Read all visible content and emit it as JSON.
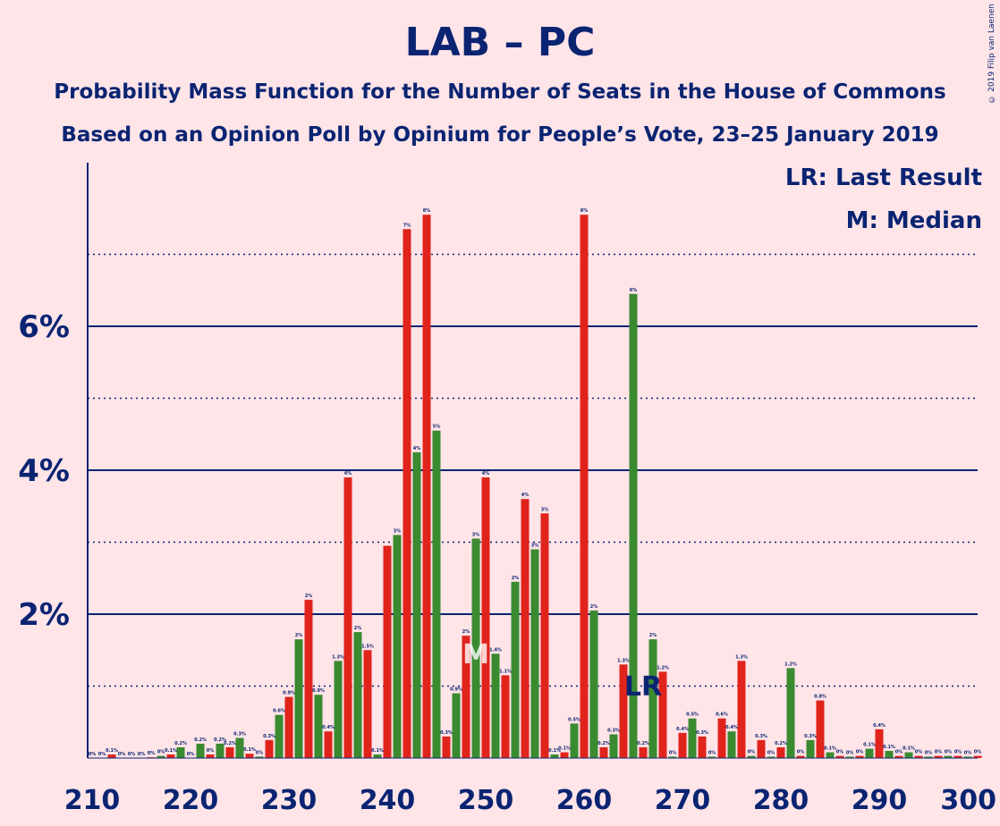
{
  "title": "LAB – PC",
  "subtitle1": "Probability Mass Function for the Number of Seats in the House of Commons",
  "subtitle2": "Based on an Opinion Poll by Opinium for People’s Vote, 23–25 January 2019",
  "copyright": "© 2019 Filip van Laenen",
  "legend": {
    "last_result": "LR: Last Result",
    "median": "M: Median"
  },
  "colors": {
    "background": "#FFE4E8",
    "red": "#E0241C",
    "green": "#3A8A30",
    "axis_text": "#0A2472"
  },
  "chart_data": {
    "type": "bar",
    "x_ticks": [
      210,
      220,
      230,
      240,
      250,
      260,
      270,
      280,
      290,
      300
    ],
    "y_ticks": [
      "2%",
      "4%",
      "6%"
    ],
    "y_tick_values": [
      2,
      4,
      6
    ],
    "ylim": [
      0,
      8.2
    ],
    "xlim": [
      210,
      300
    ],
    "median": 249,
    "median_label": "M",
    "last_result": 266,
    "last_result_label": "LR",
    "series": [
      {
        "name": "red",
        "color": "#E0241C",
        "x": [
          210,
          212,
          214,
          216,
          218,
          220,
          222,
          224,
          226,
          228,
          230,
          232,
          234,
          236,
          238,
          240,
          242,
          244,
          246,
          248,
          250,
          252,
          254,
          256,
          258,
          260,
          262,
          264,
          266,
          268,
          270,
          272,
          274,
          276,
          278,
          280,
          282,
          284,
          286,
          288,
          290,
          292,
          294,
          296,
          298,
          300
        ],
        "values": [
          0,
          0.05,
          0,
          0.01,
          0.05,
          0,
          0.05,
          0.15,
          0.06,
          0.25,
          0.85,
          2.2,
          0.37,
          3.9,
          1.5,
          2.95,
          7.35,
          7.55,
          0.3,
          1.7,
          3.9,
          1.15,
          3.6,
          3.4,
          0.08,
          7.55,
          0.15,
          1.3,
          0.15,
          1.2,
          0.35,
          0.3,
          0.55,
          1.35,
          0.25,
          0.15,
          0.03,
          0.8,
          0.03,
          0.03,
          0.4,
          0.03,
          0.03,
          0.03,
          0.03,
          0.03
        ],
        "labels": [
          "0%",
          "0.1%",
          "0%",
          "0%",
          "0.1%",
          "0%",
          "0%",
          "0.2%",
          "0.1%",
          "0.3%",
          "0.9%",
          "2%",
          "0.4%",
          "4%",
          "1.5%",
          "",
          "7%",
          "8%",
          "0.3%",
          "2%",
          "4%",
          "1.1%",
          "4%",
          "3%",
          "0.1%",
          "8%",
          "0.2%",
          "1.3%",
          "0.2%",
          "1.2%",
          "0.4%",
          "0.3%",
          "0.6%",
          "1.3%",
          "0.3%",
          "0.2%",
          "0%",
          "0.8%",
          "0%",
          "0%",
          "0.4%",
          "0%",
          "0%",
          "0%",
          "0%",
          "0%"
        ]
      },
      {
        "name": "green",
        "color": "#3A8A30",
        "x": [
          211,
          213,
          215,
          217,
          219,
          221,
          223,
          225,
          227,
          229,
          231,
          233,
          235,
          237,
          239,
          241,
          243,
          245,
          247,
          249,
          251,
          253,
          255,
          257,
          259,
          261,
          263,
          265,
          267,
          269,
          271,
          273,
          275,
          277,
          279,
          281,
          283,
          285,
          287,
          289,
          291,
          293,
          295,
          297,
          299
        ],
        "values": [
          0,
          0,
          0,
          0.03,
          0.15,
          0.2,
          0.2,
          0.28,
          0.02,
          0.6,
          1.65,
          0.88,
          1.35,
          1.75,
          0.05,
          3.1,
          4.25,
          4.55,
          0.9,
          3.05,
          1.45,
          2.45,
          2.9,
          0.05,
          0.48,
          2.05,
          0.33,
          6.45,
          1.65,
          0.02,
          0.55,
          0.02,
          0.37,
          0.03,
          0.02,
          1.25,
          0.25,
          0.08,
          0.02,
          0.13,
          0.1,
          0.08,
          0.02,
          0.03,
          0.02
        ],
        "labels": [
          "0%",
          "0%",
          "0%",
          "0%",
          "0.2%",
          "0.2%",
          "0.2%",
          "0.3%",
          "0%",
          "0.6%",
          "2%",
          "0.9%",
          "1.3%",
          "2%",
          "0.1%",
          "3%",
          "4%",
          "5%",
          "0.9%",
          "3%",
          "1.4%",
          "2%",
          "3%",
          "0.1%",
          "0.5%",
          "2%",
          "0.3%",
          "6%",
          "2%",
          "0%",
          "0.5%",
          "0%",
          "0.4%",
          "0%",
          "0%",
          "1.2%",
          "0.3%",
          "0.1%",
          "0%",
          "0.1%",
          "0.1%",
          "0.1%",
          "0%",
          "0%",
          "0%"
        ]
      }
    ]
  }
}
